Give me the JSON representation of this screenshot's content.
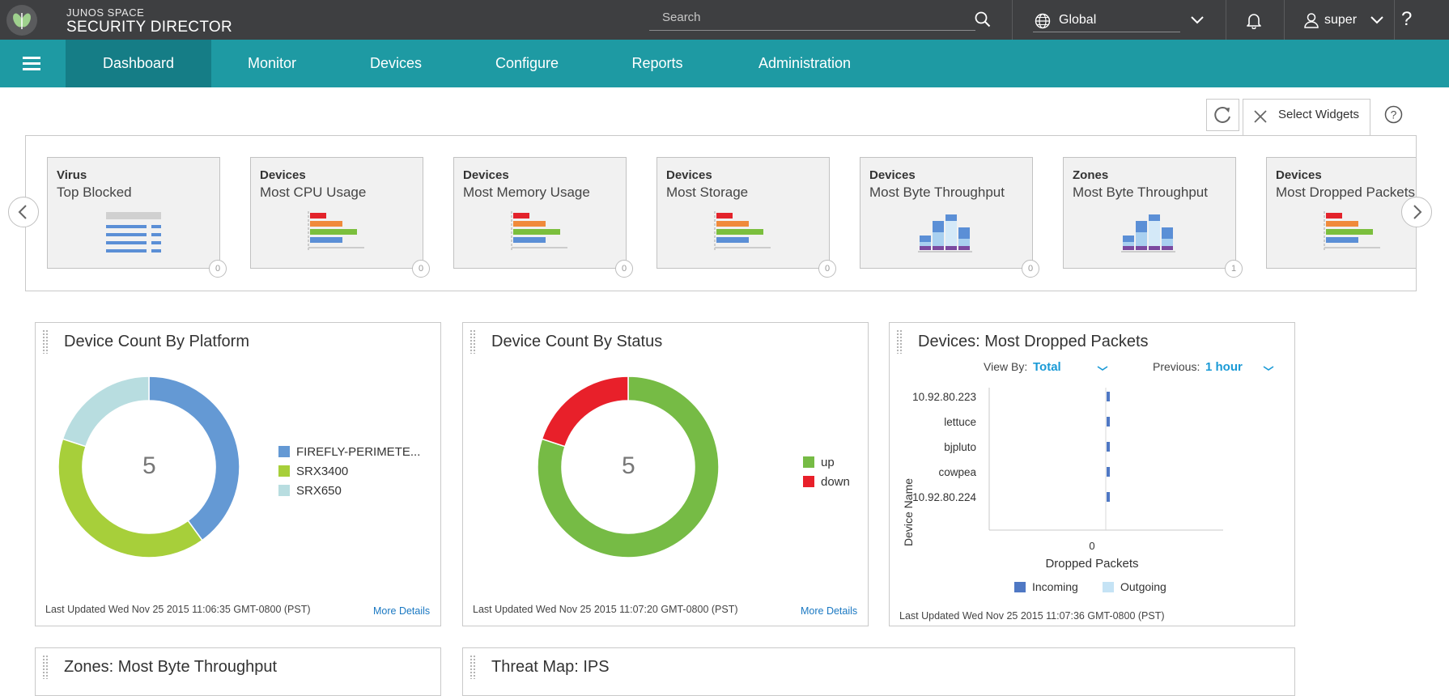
{
  "header": {
    "brand_small": "JUNOS SPACE",
    "brand_big": "SECURITY DIRECTOR",
    "search_placeholder": "Search",
    "domain": "Global",
    "user": "super",
    "help": "?"
  },
  "nav": {
    "items": [
      {
        "label": "Dashboard",
        "active": true
      },
      {
        "label": "Monitor"
      },
      {
        "label": "Devices"
      },
      {
        "label": "Configure"
      },
      {
        "label": "Reports"
      },
      {
        "label": "Administration"
      }
    ]
  },
  "toolbar": {
    "select_widgets_label": "Select Widgets"
  },
  "widget_picker": {
    "cards": [
      {
        "category": "Virus",
        "name": "Top Blocked",
        "count": "0",
        "icon": "list-icon"
      },
      {
        "category": "Devices",
        "name": "Most CPU Usage",
        "count": "0",
        "icon": "bar-chart-icon"
      },
      {
        "category": "Devices",
        "name": "Most Memory Usage",
        "count": "0",
        "icon": "bar-chart-icon"
      },
      {
        "category": "Devices",
        "name": "Most Storage",
        "count": "0",
        "icon": "bar-chart-icon"
      },
      {
        "category": "Devices",
        "name": "Most Byte Throughput",
        "count": "0",
        "icon": "stacked-column-icon"
      },
      {
        "category": "Zones",
        "name": "Most Byte Throughput",
        "count": "1",
        "icon": "stacked-column-icon"
      },
      {
        "category": "Devices",
        "name": "Most Dropped Packets",
        "count": "",
        "icon": "bar-chart-icon"
      }
    ]
  },
  "widgets": {
    "platform": {
      "title": "Device Count By Platform",
      "total": "5",
      "footer": "Last Updated Wed Nov 25 2015 11:06:35 GMT-0800 (PST)",
      "more": "More Details",
      "legend": [
        {
          "label": "FIREFLY-PERIMETE...",
          "color": "#6499d4"
        },
        {
          "label": "SRX3400",
          "color": "#a7cf3a"
        },
        {
          "label": "SRX650",
          "color": "#b8dde0"
        }
      ]
    },
    "status": {
      "title": "Device Count By Status",
      "total": "5",
      "footer": "Last Updated Wed Nov 25 2015 11:07:20 GMT-0800 (PST)",
      "more": "More Details",
      "legend": [
        {
          "label": "up",
          "color": "#76bb45"
        },
        {
          "label": "down",
          "color": "#e8202a"
        }
      ]
    },
    "dropped": {
      "title": "Devices: Most Dropped Packets",
      "view_by_label": "View By:",
      "view_by_value": "Total",
      "previous_label": "Previous:",
      "previous_value": "1 hour",
      "ylabel": "Device Name",
      "xlabel": "Dropped Packets",
      "xtick": "0",
      "footer": "Last Updated Wed Nov 25 2015 11:07:36 GMT-0800 (PST)",
      "legend": [
        {
          "label": "Incoming",
          "color": "#4f78c4"
        },
        {
          "label": "Outgoing",
          "color": "#c5e3f5"
        }
      ]
    },
    "zones": {
      "title": "Zones: Most Byte Throughput"
    },
    "threat": {
      "title": "Threat Map: IPS"
    }
  },
  "chart_data": [
    {
      "type": "pie",
      "title": "Device Count By Platform",
      "categories": [
        "FIREFLY-PERIMETE...",
        "SRX3400",
        "SRX650"
      ],
      "values": [
        2,
        2,
        1
      ],
      "center_label": "5"
    },
    {
      "type": "pie",
      "title": "Device Count By Status",
      "categories": [
        "up",
        "down"
      ],
      "values": [
        4,
        1
      ],
      "center_label": "5"
    },
    {
      "type": "bar",
      "orientation": "horizontal",
      "title": "Devices: Most Dropped Packets",
      "categories": [
        "10.92.80.223",
        "lettuce",
        "bjpluto",
        "cowpea",
        "10.92.80.224"
      ],
      "series": [
        {
          "name": "Incoming",
          "values": [
            0,
            0,
            0,
            0,
            0
          ]
        },
        {
          "name": "Outgoing",
          "values": [
            0,
            0,
            0,
            0,
            0
          ]
        }
      ],
      "xlabel": "Dropped Packets",
      "ylabel": "Device Name",
      "xticks": [
        "0"
      ]
    }
  ]
}
